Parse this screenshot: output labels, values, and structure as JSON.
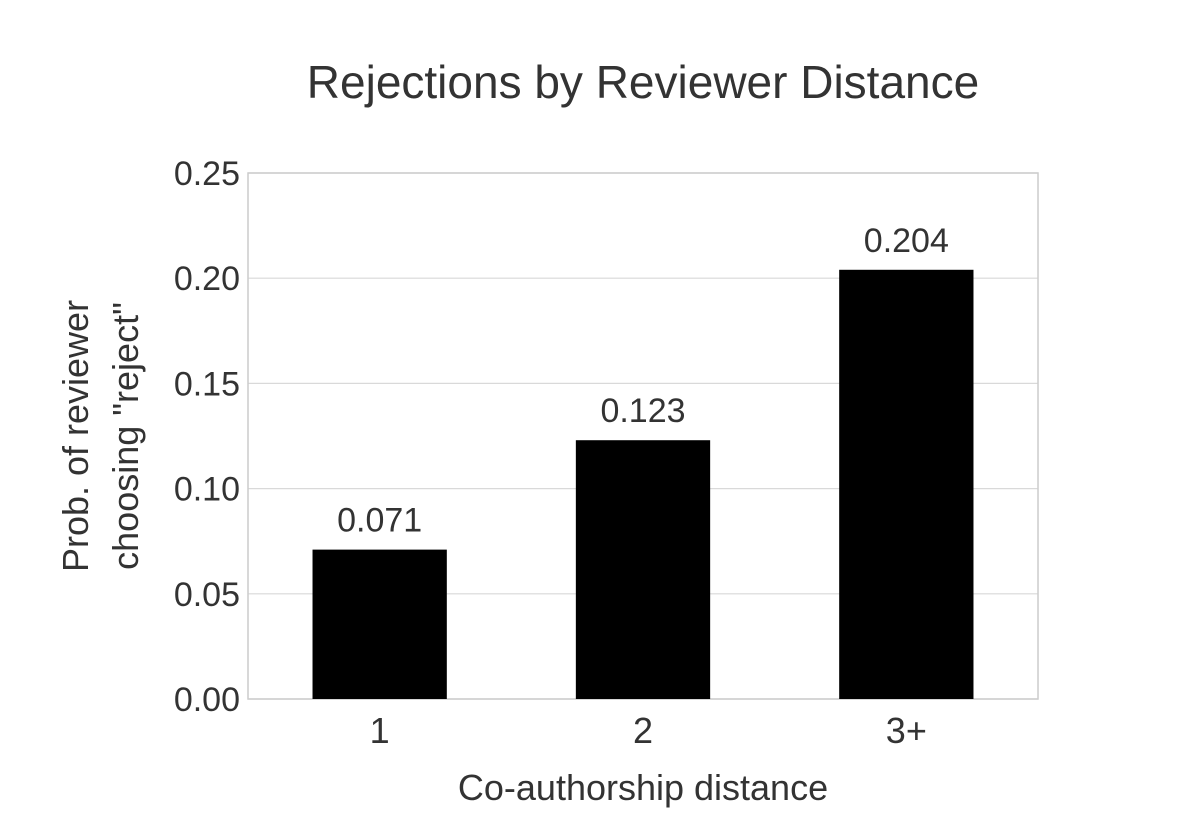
{
  "chart_data": {
    "type": "bar",
    "title": "Rejections by Reviewer Distance",
    "xlabel": "Co-authorship distance",
    "ylabel_lines": [
      "Prob. of reviewer",
      "choosing \"reject\""
    ],
    "categories": [
      "1",
      "2",
      "3+"
    ],
    "values": [
      0.071,
      0.123,
      0.204
    ],
    "data_labels": [
      "0.071",
      "0.123",
      "0.204"
    ],
    "ylim": [
      0,
      0.25
    ],
    "yticks": [
      0,
      0.05,
      0.1,
      0.15,
      0.2,
      0.25
    ],
    "ytick_labels": [
      "0.00",
      "0.05",
      "0.10",
      "0.15",
      "0.20",
      "0.25"
    ],
    "bar_color": "#000000",
    "grid": true
  }
}
